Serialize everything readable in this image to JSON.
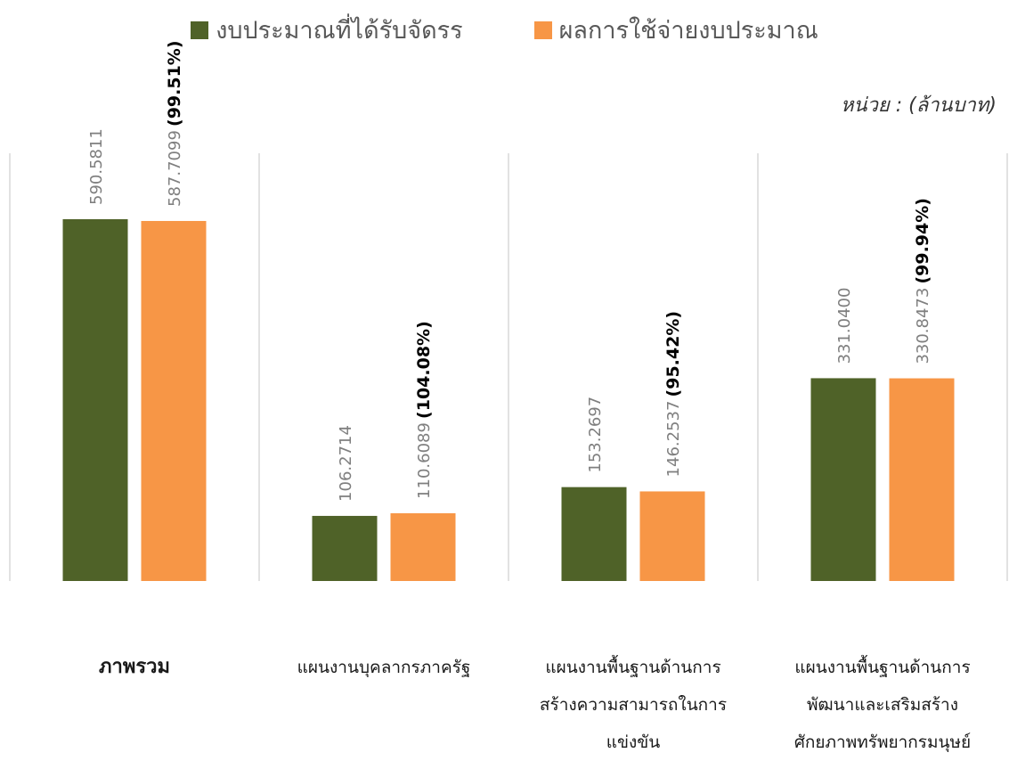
{
  "chart_data": {
    "type": "bar",
    "title": "",
    "unit_label": "หน่วย : (ล้านบาท)",
    "categories": [
      {
        "label": [
          "ภาพรวม"
        ],
        "bold": true
      },
      {
        "label": [
          "แผนงานบุคลากรภาครัฐ"
        ],
        "bold": false
      },
      {
        "label": [
          "แผนงานพื้นฐานด้านการ",
          "สร้างความสามารถในการ",
          "แข่งขัน"
        ],
        "bold": false
      },
      {
        "label": [
          "แผนงานพื้นฐานด้านการ",
          "พัฒนาและเสริมสร้าง",
          "ศักยภาพทรัพยากรมนุษย์"
        ],
        "bold": false
      }
    ],
    "series": [
      {
        "name": "งบประมาณที่ได้รับจัดรร",
        "color": "#4f6228",
        "values": [
          590.5811,
          106.2714,
          153.2697,
          331.04
        ],
        "labels": [
          "590.5811",
          "106.2714",
          "153.2697",
          "331.0400"
        ]
      },
      {
        "name": "ผลการใช้จ่ายงบประมาณ",
        "color": "#f79646",
        "values": [
          587.7099,
          110.6089,
          146.2537,
          330.8473
        ],
        "labels": [
          "587.7099",
          "110.6089",
          "146.2537",
          "330.8473"
        ]
      }
    ],
    "percent_labels": [
      "(99.51%)",
      "(104.08%)",
      "(95.42%)",
      "(99.94%)"
    ],
    "ylim": [
      0,
      700
    ],
    "grid": false,
    "legend_position": "top-center",
    "data_label_color": "#7f7f7f",
    "percent_label_color": "#000000",
    "separator_color": "#d9d9d9"
  }
}
